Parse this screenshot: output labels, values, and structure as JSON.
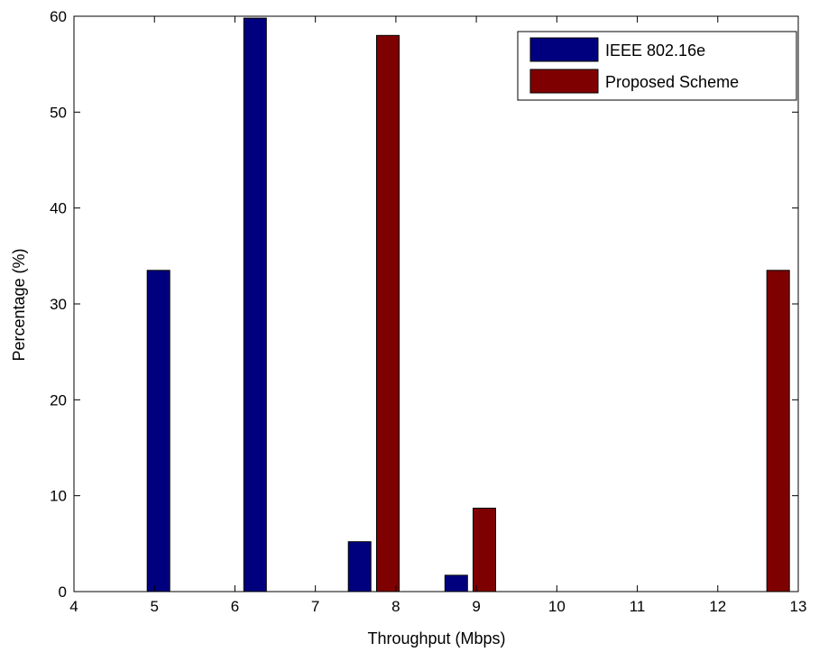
{
  "chart_data": {
    "type": "bar",
    "xlabel": "Throughput (Mbps)",
    "ylabel": "Percentage (%)",
    "xlim": [
      4,
      13
    ],
    "ylim": [
      0,
      60
    ],
    "xticks": [
      "4",
      "5",
      "6",
      "7",
      "8",
      "9",
      "10",
      "11",
      "12",
      "13"
    ],
    "yticks": [
      "0",
      "10",
      "20",
      "30",
      "40",
      "50",
      "60"
    ],
    "grid": false,
    "legend_position": "top-right",
    "series": [
      {
        "name": "IEEE 802.16e",
        "color": "#00007f",
        "points": [
          {
            "x": 5.05,
            "y": 33.5
          },
          {
            "x": 6.25,
            "y": 59.8
          },
          {
            "x": 7.55,
            "y": 5.2
          },
          {
            "x": 8.75,
            "y": 1.7
          }
        ]
      },
      {
        "name": "Proposed Scheme",
        "color": "#7f0000",
        "points": [
          {
            "x": 7.9,
            "y": 58.0
          },
          {
            "x": 9.1,
            "y": 8.7
          },
          {
            "x": 12.75,
            "y": 33.5
          }
        ]
      }
    ]
  }
}
